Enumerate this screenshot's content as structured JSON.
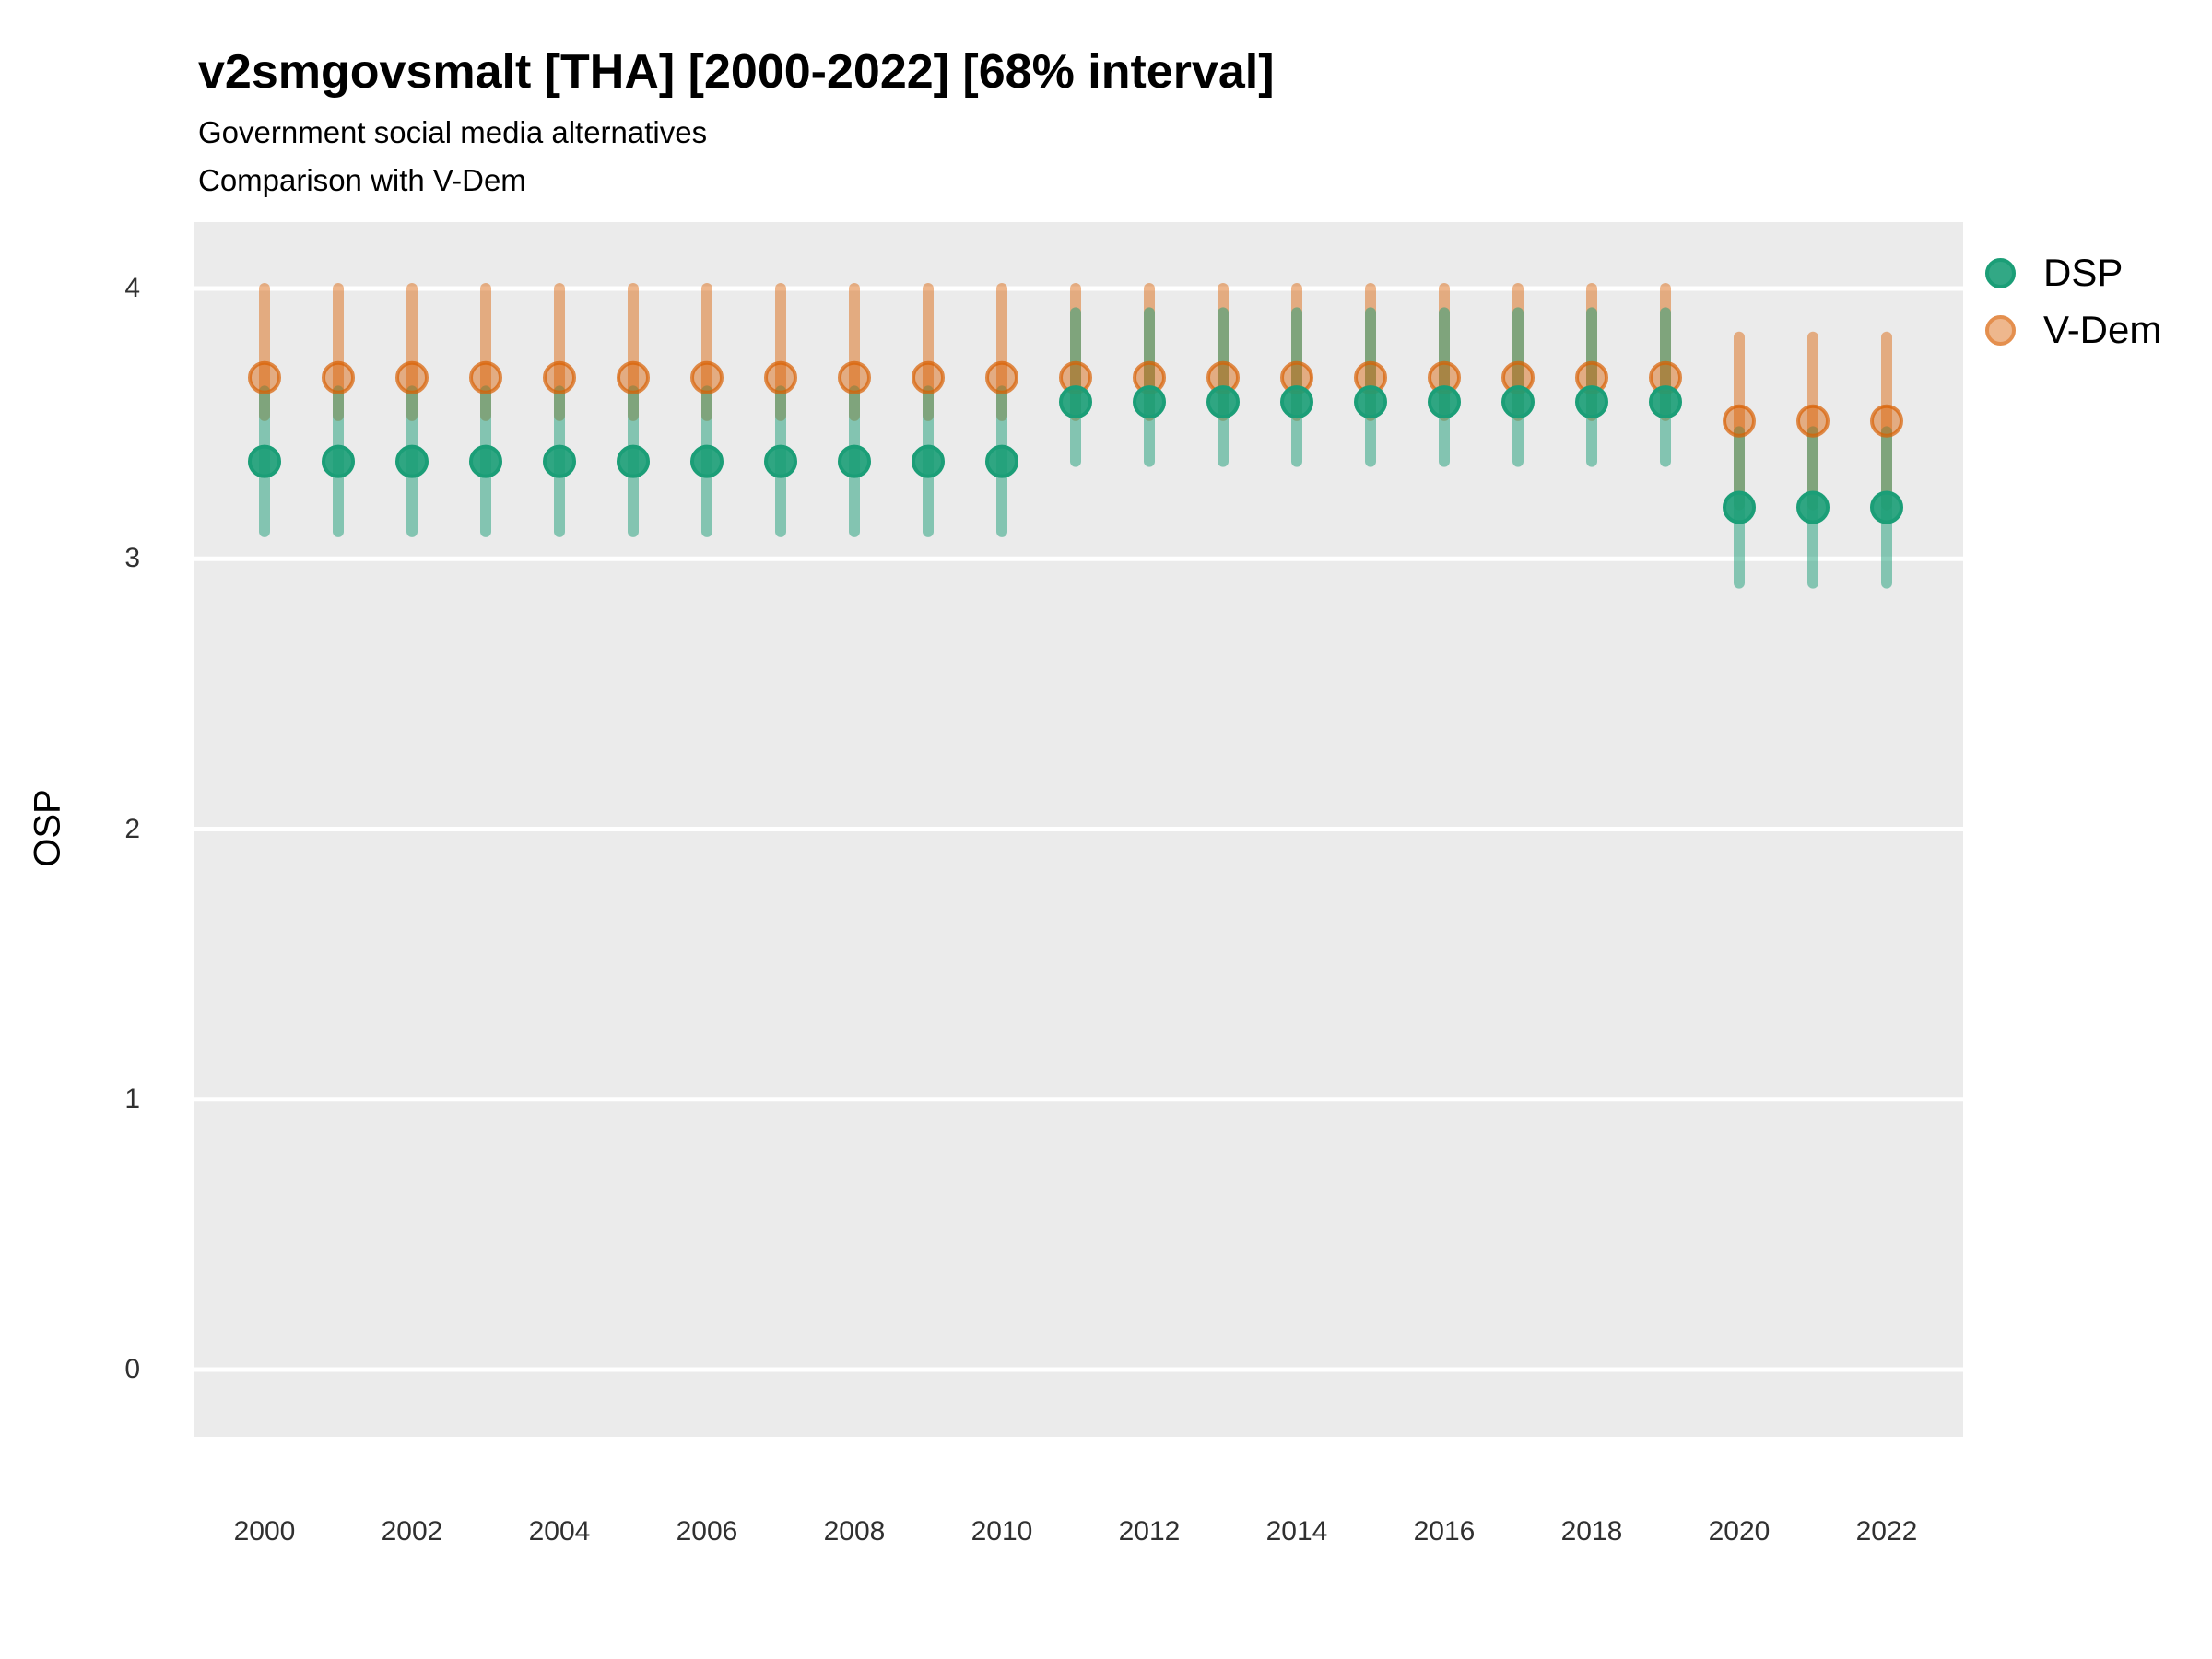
{
  "title": "v2smgovsmalt [THA] [2000-2022] [68% interval]",
  "subtitle_line1": "Government social media alternatives",
  "subtitle_line2": "Comparison with V-Dem",
  "colors": {
    "panel_background": "#EBEBEB",
    "gridline": "#FFFFFF",
    "dsp_green": "#1B9E77",
    "vdem_orange": "#D95F02",
    "axis_text": "#303030",
    "text": "#000000"
  },
  "chart_data": {
    "type": "pointrange",
    "title": "v2smgovsmalt [THA] [2000-2022] [68% interval]",
    "subtitle": [
      "Government social media alternatives",
      "Comparison with V-Dem"
    ],
    "interval": "68%",
    "xlabel": "",
    "ylabel": "OSP",
    "grid": "horizontal major gridlines only, white on gray panel",
    "legend_position": "right",
    "ylim": [
      -0.25,
      4.25
    ],
    "yticks": [
      0,
      1,
      2,
      3,
      4
    ],
    "xticks": [
      2000,
      2002,
      2004,
      2006,
      2008,
      2010,
      2012,
      2014,
      2016,
      2018,
      2020,
      2022
    ],
    "x": [
      2000,
      2001,
      2002,
      2003,
      2004,
      2005,
      2006,
      2007,
      2008,
      2009,
      2010,
      2011,
      2012,
      2013,
      2014,
      2015,
      2016,
      2017,
      2018,
      2019,
      2020,
      2021,
      2022
    ],
    "series": [
      {
        "name": "DSP",
        "color": "#1B9E77",
        "points": [
          3.36,
          3.36,
          3.36,
          3.36,
          3.36,
          3.36,
          3.36,
          3.36,
          3.36,
          3.36,
          3.36,
          3.58,
          3.58,
          3.58,
          3.58,
          3.58,
          3.58,
          3.58,
          3.58,
          3.58,
          3.19,
          3.19,
          3.19
        ],
        "lo": [
          3.1,
          3.1,
          3.1,
          3.1,
          3.1,
          3.1,
          3.1,
          3.1,
          3.1,
          3.1,
          3.1,
          3.36,
          3.36,
          3.36,
          3.36,
          3.36,
          3.36,
          3.36,
          3.36,
          3.36,
          2.91,
          2.91,
          2.91
        ],
        "hi": [
          3.62,
          3.62,
          3.62,
          3.62,
          3.62,
          3.62,
          3.62,
          3.62,
          3.62,
          3.62,
          3.62,
          3.91,
          3.91,
          3.91,
          3.91,
          3.91,
          3.91,
          3.91,
          3.91,
          3.91,
          3.47,
          3.47,
          3.47
        ]
      },
      {
        "name": "V-Dem",
        "color": "#D95F02",
        "points": [
          3.67,
          3.67,
          3.67,
          3.67,
          3.67,
          3.67,
          3.67,
          3.67,
          3.67,
          3.67,
          3.67,
          3.67,
          3.67,
          3.67,
          3.67,
          3.67,
          3.67,
          3.67,
          3.67,
          3.67,
          3.51,
          3.51,
          3.51
        ],
        "lo": [
          3.53,
          3.53,
          3.53,
          3.53,
          3.53,
          3.53,
          3.53,
          3.53,
          3.53,
          3.53,
          3.53,
          3.53,
          3.53,
          3.53,
          3.53,
          3.53,
          3.53,
          3.53,
          3.53,
          3.53,
          3.2,
          3.2,
          3.2
        ],
        "hi": [
          4.0,
          4.0,
          4.0,
          4.0,
          4.0,
          4.0,
          4.0,
          4.0,
          4.0,
          4.0,
          4.0,
          4.0,
          4.0,
          4.0,
          4.0,
          4.0,
          4.0,
          4.0,
          4.0,
          4.0,
          3.82,
          3.82,
          3.82
        ]
      }
    ]
  }
}
